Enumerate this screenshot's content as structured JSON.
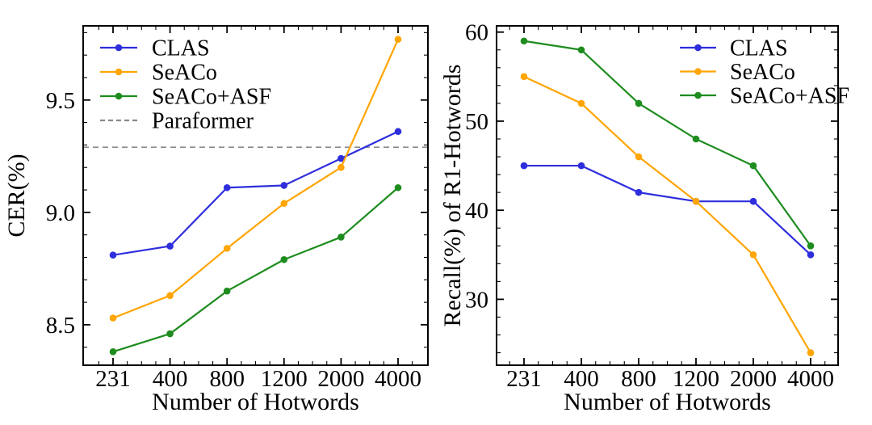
{
  "figure": {
    "background": "#ffffff",
    "text_color": "#000000",
    "axis_color": "#000000"
  },
  "colors": {
    "CLAS": "#2e2edd",
    "SeACo": "#ffa504",
    "SeACo+ASF": "#1e8c1e",
    "Paraformer": "#8a8a8a"
  },
  "chart_data": [
    {
      "id": "cer",
      "type": "line",
      "title": "",
      "xlabel": "Number of Hotwords",
      "ylabel": "CER(%)",
      "categories": [
        "231",
        "400",
        "800",
        "1200",
        "2000",
        "4000"
      ],
      "series": [
        {
          "name": "CLAS",
          "color_key": "CLAS",
          "marker": "circle",
          "values": [
            8.81,
            8.85,
            9.11,
            9.12,
            9.24,
            9.36
          ]
        },
        {
          "name": "SeACo",
          "color_key": "SeACo",
          "marker": "circle",
          "values": [
            8.53,
            8.63,
            8.84,
            9.04,
            9.2,
            9.77
          ]
        },
        {
          "name": "SeACo+ASF",
          "color_key": "SeACo+ASF",
          "marker": "circle",
          "values": [
            8.38,
            8.46,
            8.65,
            8.79,
            8.89,
            9.11
          ]
        }
      ],
      "baseline": {
        "name": "Paraformer",
        "value": 9.29,
        "color_key": "Paraformer",
        "style": "dashed"
      },
      "ylim": [
        8.32,
        9.83
      ],
      "yticks": [
        8.5,
        9.0,
        9.5
      ],
      "ytick_labels": [
        "8.5",
        "9.0",
        "9.5"
      ],
      "y_minor_step": 0.1,
      "x_minor_per_interval": 3,
      "grid": false,
      "legend_position": "upper-left"
    },
    {
      "id": "recall",
      "type": "line",
      "title": "",
      "xlabel": "Number of Hotwords",
      "ylabel": "Recall(%) of R1-Hotwords",
      "categories": [
        "231",
        "400",
        "800",
        "1200",
        "2000",
        "4000"
      ],
      "series": [
        {
          "name": "CLAS",
          "color_key": "CLAS",
          "marker": "circle",
          "values": [
            45,
            45,
            42,
            41,
            41,
            35
          ]
        },
        {
          "name": "SeACo",
          "color_key": "SeACo",
          "marker": "circle",
          "values": [
            55,
            52,
            46,
            41,
            35,
            24
          ]
        },
        {
          "name": "SeACo+ASF",
          "color_key": "SeACo+ASF",
          "marker": "circle",
          "values": [
            59,
            58,
            52,
            48,
            45,
            36
          ]
        }
      ],
      "baseline": null,
      "ylim": [
        22.6,
        60.7
      ],
      "yticks": [
        30,
        40,
        50,
        60
      ],
      "ytick_labels": [
        "30",
        "40",
        "50",
        "60"
      ],
      "y_minor_step": 2,
      "x_minor_per_interval": 3,
      "grid": false,
      "legend_position": "upper-right"
    }
  ]
}
